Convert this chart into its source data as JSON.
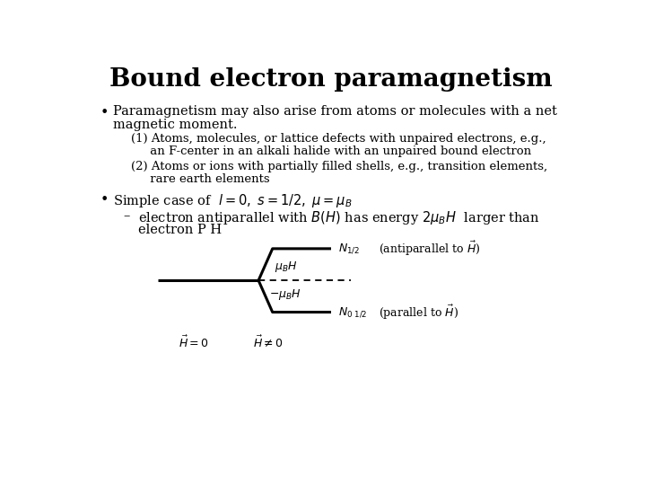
{
  "title": "Bound electron paramagnetism",
  "bg_color": "#ffffff",
  "text_color": "#000000",
  "title_fontsize": 20,
  "body_fontsize": 10.5,
  "small_fontsize": 9.5,
  "diagram_fontsize": 9.0,
  "bullet1_line1": "Paramagnetism may also arise from atoms or molecules with a net",
  "bullet1_line2": "magnetic moment.",
  "item1_line1": "(1) Atoms, molecules, or lattice defects with unpaired electrons, e.g.,",
  "item1_line2": "     an F-center in an alkali halide with an unpaired bound electron",
  "item2_line1": "(2) Atoms or ions with partially filled shells, e.g., transition elements,",
  "item2_line2": "     rare earth elements",
  "sub_line1": "electron antiparallel with $B(H)$ has energy $2\\mu_B H$  larger than",
  "sub_line2": "electron P H"
}
